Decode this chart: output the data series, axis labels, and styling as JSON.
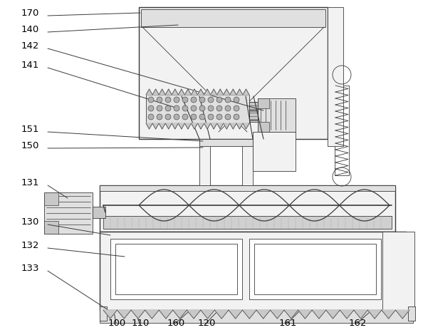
{
  "bg_color": "#ffffff",
  "lc": "#3a3a3a",
  "fc_light": "#f2f2f2",
  "fc_mid": "#e0e0e0",
  "fc_dark": "#c8c8c8",
  "fc_mesh": "#d0d0d0"
}
